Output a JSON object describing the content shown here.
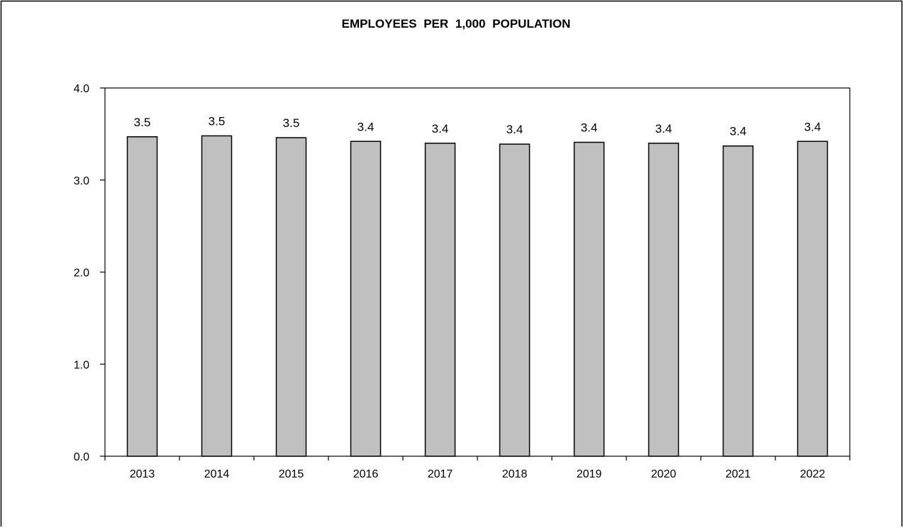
{
  "chart_data": {
    "type": "bar",
    "title": "EMPLOYEES PER 1,000 POPULATION",
    "xlabel": "",
    "ylabel": "",
    "categories": [
      "2013",
      "2014",
      "2015",
      "2016",
      "2017",
      "2018",
      "2019",
      "2020",
      "2021",
      "2022"
    ],
    "values": [
      3.47,
      3.48,
      3.46,
      3.42,
      3.4,
      3.39,
      3.41,
      3.4,
      3.37,
      3.42
    ],
    "data_labels": [
      "3.5",
      "3.5",
      "3.5",
      "3.4",
      "3.4",
      "3.4",
      "3.4",
      "3.4",
      "3.4",
      "3.4"
    ],
    "ylim": [
      0,
      4
    ],
    "yticks": [
      "0.0",
      "1.0",
      "2.0",
      "3.0",
      "4.0"
    ],
    "grid": false,
    "legend": "none",
    "bar_color": "#c0c0c0",
    "bar_edge_color": "#000000"
  }
}
